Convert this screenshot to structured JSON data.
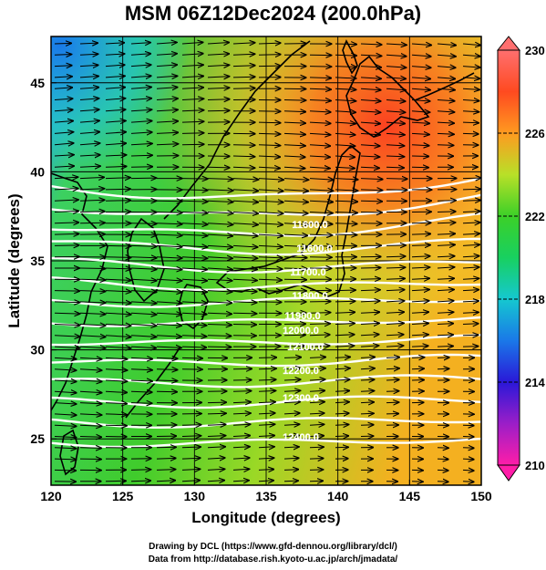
{
  "title": "MSM 06Z12Dec2024 (200.0hPa)",
  "map": {
    "xlabel": "Longitude (degrees)",
    "ylabel": "Latitude  (degrees)",
    "lon_range": [
      120,
      150
    ],
    "lat_range": [
      22.4,
      47.6
    ],
    "x_ticks": [
      "120",
      "125",
      "130",
      "135",
      "140",
      "145",
      "150"
    ],
    "y_ticks": [
      "25",
      "30",
      "35",
      "40",
      "45"
    ],
    "shaded_field": "temperature (K)",
    "overlay": [
      "wind vectors (eastward flow)",
      "white geopotential height contours",
      "black coastlines",
      "lat/lon grid"
    ]
  },
  "colorbar": {
    "min": 210,
    "max": 230,
    "tick_labels": [
      "230",
      "226",
      "222",
      "218",
      "214",
      "210"
    ],
    "colors": [
      "#ff1da8",
      "#9b1ec8",
      "#2a18d8",
      "#1a78e8",
      "#15c8d0",
      "#18d060",
      "#3cd028",
      "#b8e028",
      "#f0e030",
      "#ff9a20",
      "#ff4a20",
      "#ff6f6f"
    ]
  },
  "contours": {
    "labels": [
      "11600.0",
      "11600.0",
      "11700.0",
      "11800.0",
      "11900.0",
      "12000.0",
      "12100.0",
      "12200.0",
      "12300.0",
      "12400.0"
    ]
  },
  "credits": {
    "line1": "Drawing by DCL (https://www.gfd-dennou.org/library/dcl/)",
    "line2": "Data from http://database.rish.kyoto-u.ac.jp/arch/jmadata/"
  }
}
